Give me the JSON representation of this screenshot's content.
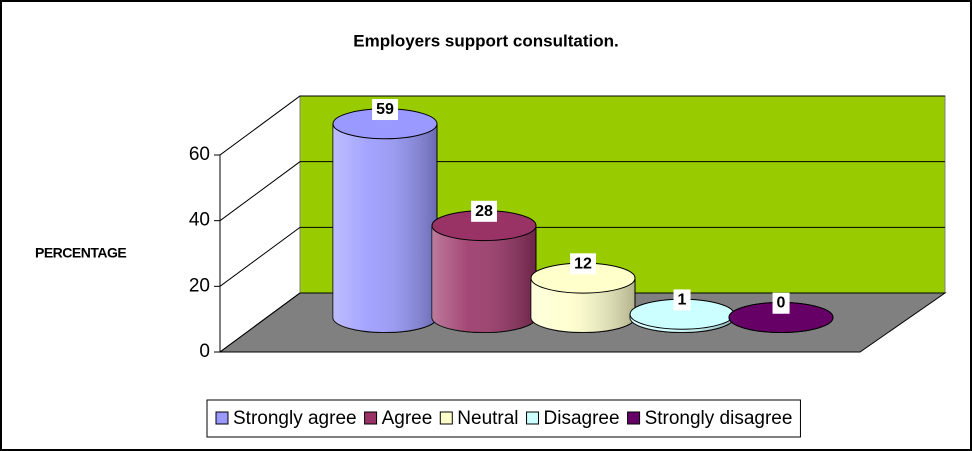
{
  "chart_data": {
    "type": "bar",
    "title": "Employers support consultation.",
    "y_label": "PERCENTAGE",
    "series": [
      {
        "name": "Strongly agree",
        "color": "#9999ff",
        "values": [
          59
        ]
      },
      {
        "name": "Agree",
        "color": "#993366",
        "values": [
          28
        ]
      },
      {
        "name": "Neutral",
        "color": "#ffffcc",
        "values": [
          12
        ]
      },
      {
        "name": "Disagree",
        "color": "#ccffff",
        "values": [
          1
        ]
      },
      {
        "name": "Strongly disagree",
        "color": "#660066",
        "values": [
          0
        ]
      }
    ],
    "ylim": [
      0,
      60
    ],
    "yticks": [
      0,
      20,
      40,
      60
    ],
    "grid": true,
    "wall_color": "#99cc00",
    "floor_color": "#808080",
    "legend": "bottom"
  }
}
